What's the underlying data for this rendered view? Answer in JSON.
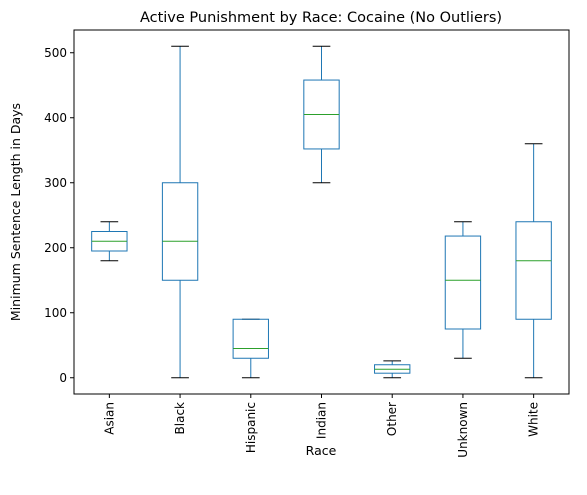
{
  "chart_data": {
    "type": "boxplot",
    "title": "Active Punishment by Race: Cocaine (No Outliers)",
    "xlabel": "Race",
    "ylabel": "Minimum Sentence Length in Days",
    "ylim": [
      -25,
      535
    ],
    "yticks": [
      0,
      100,
      200,
      300,
      400,
      500
    ],
    "grid": false,
    "legend": "none",
    "colors": {
      "box": "#1f77b4",
      "median": "#2ca02c",
      "cap": "#000000"
    },
    "categories": [
      "Asian",
      "Black",
      "Hispanic",
      "Indian",
      "Other",
      "Unknown",
      "White"
    ],
    "boxes": [
      {
        "category": "Asian",
        "whislo": 180,
        "q1": 195,
        "med": 210,
        "q3": 225,
        "whishi": 240
      },
      {
        "category": "Black",
        "whislo": 0,
        "q1": 150,
        "med": 210,
        "q3": 300,
        "whishi": 510
      },
      {
        "category": "Hispanic",
        "whislo": 0,
        "q1": 30,
        "med": 45,
        "q3": 90,
        "whishi": 90
      },
      {
        "category": "Indian",
        "whislo": 300,
        "q1": 352,
        "med": 405,
        "q3": 458,
        "whishi": 510
      },
      {
        "category": "Other",
        "whislo": 0,
        "q1": 7,
        "med": 13,
        "q3": 20,
        "whishi": 26
      },
      {
        "category": "Unknown",
        "whislo": 30,
        "q1": 75,
        "med": 150,
        "q3": 218,
        "whishi": 240
      },
      {
        "category": "White",
        "whislo": 0,
        "q1": 90,
        "med": 180,
        "q3": 240,
        "whishi": 360
      }
    ]
  }
}
